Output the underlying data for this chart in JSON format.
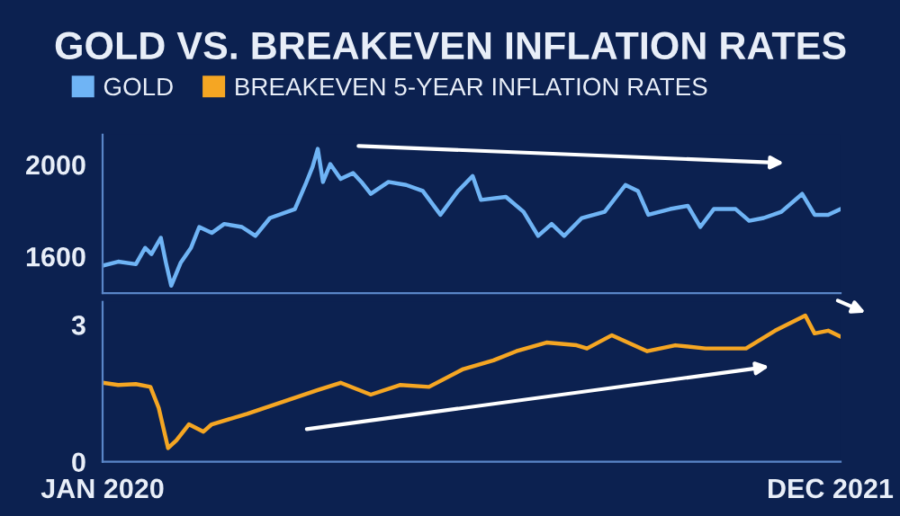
{
  "chart_data": [
    {
      "type": "line",
      "title": "GOLD VS. BREAKEVEN INFLATION RATES",
      "legend": "top left",
      "tick_labels": "y",
      "xlim": [
        "2020-01-01",
        "2021-12-11"
      ],
      "ylim": [
        1440,
        2130
      ],
      "yticks": [
        1600,
        2000
      ],
      "series": [
        {
          "name": "GOLD",
          "color": "#6fb4f5",
          "x": [
            "2020-01-01",
            "2020-01-16",
            "2020-02-02",
            "2020-02-11",
            "2020-02-17",
            "2020-02-26",
            "2020-03-02",
            "2020-03-07",
            "2020-03-16",
            "2020-03-26",
            "2020-04-03",
            "2020-04-15",
            "2020-04-27",
            "2020-05-14",
            "2020-05-27",
            "2020-06-10",
            "2020-07-04",
            "2020-07-14",
            "2020-07-21",
            "2020-07-26",
            "2020-07-31",
            "2020-08-07",
            "2020-08-17",
            "2020-08-29",
            "2020-09-06",
            "2020-09-15",
            "2020-10-02",
            "2020-10-19",
            "2020-11-04",
            "2020-11-21",
            "2020-12-08",
            "2020-12-22",
            "2020-12-30",
            "2021-01-23",
            "2021-02-09",
            "2021-02-23",
            "2021-03-08",
            "2021-03-20",
            "2021-04-06",
            "2021-04-28",
            "2021-05-18",
            "2021-05-30",
            "2021-06-09",
            "2021-06-30",
            "2021-07-17",
            "2021-07-29",
            "2021-08-11",
            "2021-09-01",
            "2021-09-14",
            "2021-09-28",
            "2021-10-15",
            "2021-11-04",
            "2021-11-16",
            "2021-11-29",
            "2021-12-11"
          ],
          "values": [
            1559,
            1577,
            1566,
            1637,
            1610,
            1681,
            1571,
            1472,
            1571,
            1637,
            1728,
            1702,
            1741,
            1728,
            1689,
            1767,
            1806,
            1911,
            1990,
            2068,
            1924,
            2002,
            1937,
            1963,
            1924,
            1872,
            1924,
            1911,
            1885,
            1781,
            1885,
            1950,
            1846,
            1859,
            1794,
            1689,
            1741,
            1689,
            1767,
            1794,
            1911,
            1885,
            1781,
            1806,
            1820,
            1728,
            1806,
            1806,
            1755,
            1767,
            1794,
            1872,
            1781,
            1781,
            1806
          ]
        }
      ]
    },
    {
      "type": "line",
      "legend": "top left",
      "xlim": [
        "2020-01-01",
        "2021-12-11"
      ],
      "xticks": [
        {
          "value": "2020-01-01",
          "label": "JAN 2020"
        },
        {
          "value": "2021-12-01",
          "label": "DEC 2021"
        }
      ],
      "ylim": [
        0,
        3.5
      ],
      "yticks": [
        0,
        3
      ],
      "series": [
        {
          "name": "BREAKEVEN 5-YEAR INFLATION RATES",
          "color": "#f5a623",
          "x": [
            "2020-01-01",
            "2020-01-16",
            "2020-02-02",
            "2020-02-16",
            "2020-02-24",
            "2020-03-04",
            "2020-03-12",
            "2020-03-24",
            "2020-04-07",
            "2020-04-15",
            "2020-05-19",
            "2020-06-22",
            "2020-07-26",
            "2020-08-17",
            "2020-09-15",
            "2020-10-13",
            "2020-11-10",
            "2020-12-13",
            "2021-01-11",
            "2021-02-02",
            "2021-03-03",
            "2021-04-01",
            "2021-04-11",
            "2021-05-05",
            "2021-06-08",
            "2021-07-05",
            "2021-08-03",
            "2021-09-11",
            "2021-10-09",
            "2021-11-07",
            "2021-11-16",
            "2021-11-29",
            "2021-12-11"
          ],
          "values": [
            1.73,
            1.68,
            1.7,
            1.64,
            1.18,
            0.3,
            0.47,
            0.82,
            0.66,
            0.82,
            1.05,
            1.31,
            1.57,
            1.73,
            1.47,
            1.68,
            1.64,
            2.03,
            2.22,
            2.42,
            2.61,
            2.55,
            2.48,
            2.77,
            2.42,
            2.55,
            2.48,
            2.48,
            2.87,
            3.2,
            2.81,
            2.87,
            2.74
          ]
        }
      ]
    }
  ]
}
